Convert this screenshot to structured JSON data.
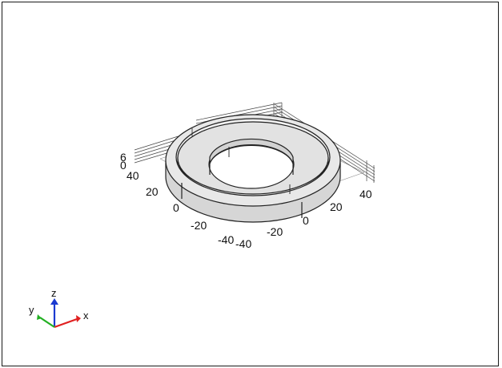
{
  "viewport": {
    "x_ticks": [
      "-40",
      "-20",
      "0",
      "20",
      "40"
    ],
    "y_ticks": [
      "-40",
      "-20",
      "0",
      "20",
      "40"
    ],
    "z_ticks": [
      "0",
      "6"
    ]
  },
  "triad": {
    "x_label": "x",
    "y_label": "y",
    "z_label": "z",
    "x_color": "#e02020",
    "y_color": "#22b022",
    "z_color": "#1a3ad0"
  },
  "colors": {
    "geometry_face": "#e6e6e6",
    "geometry_edge": "#222222",
    "grid": "#555555"
  }
}
